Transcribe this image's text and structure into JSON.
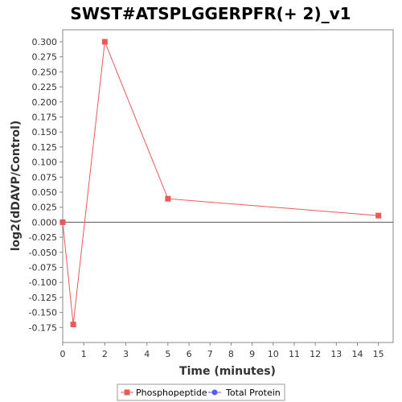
{
  "chart_data": {
    "type": "line",
    "title": "SWST#ATSPLGGERPFR(+ 2)_v1",
    "xlabel": "Time (minutes)",
    "ylabel": "log2(dDAVP/Control)",
    "xlim": [
      0,
      15.7
    ],
    "ylim": [
      -0.2,
      0.32
    ],
    "x_ticks": [
      0,
      1,
      2,
      3,
      4,
      5,
      6,
      7,
      8,
      9,
      10,
      11,
      12,
      13,
      14,
      15
    ],
    "y_ticks": [
      -0.175,
      -0.15,
      -0.125,
      -0.1,
      -0.075,
      -0.05,
      -0.025,
      0.0,
      0.025,
      0.05,
      0.075,
      0.1,
      0.125,
      0.15,
      0.175,
      0.2,
      0.225,
      0.25,
      0.275,
      0.3
    ],
    "y_tick_labels": [
      "-0.175",
      "-0.150",
      "-0.125",
      "-0.100",
      "-0.075",
      "-0.050",
      "-0.025",
      "0.000",
      "0.025",
      "0.050",
      "0.075",
      "0.100",
      "0.125",
      "0.150",
      "0.175",
      "0.200",
      "0.225",
      "0.250",
      "0.275",
      "0.300"
    ],
    "zero_line": true,
    "series": [
      {
        "name": "Phosphopeptide",
        "color": "#e8595a",
        "marker": "square",
        "x": [
          0,
          0.5,
          2,
          5,
          15
        ],
        "y": [
          0.0,
          -0.17,
          0.3,
          0.039,
          0.011
        ]
      },
      {
        "name": "Total Protein",
        "color": "#5b5bf0",
        "marker": "circle",
        "x": [],
        "y": []
      }
    ],
    "legend_position": "bottom-center"
  }
}
